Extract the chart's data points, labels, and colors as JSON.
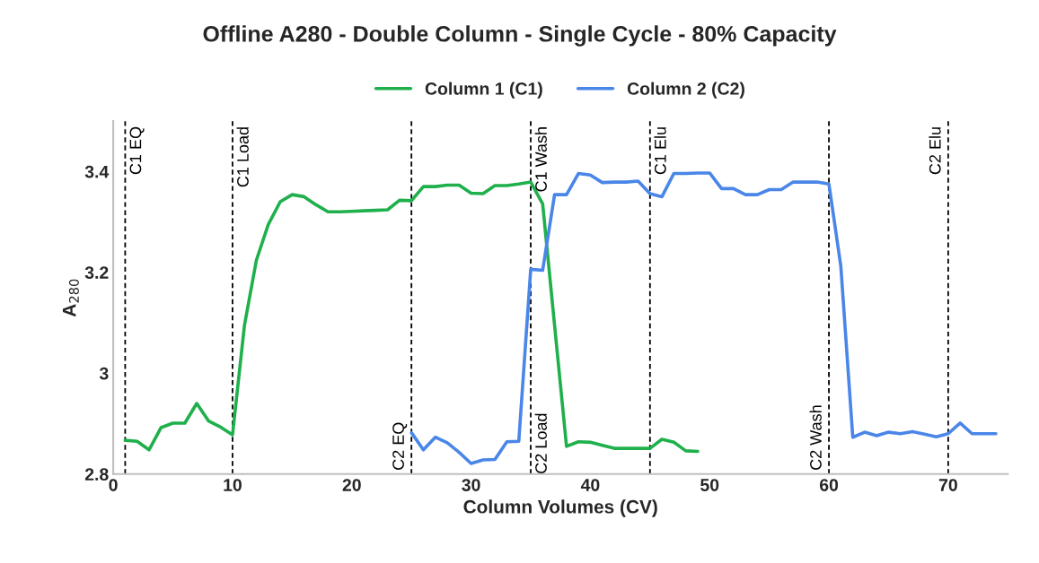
{
  "chart_data": {
    "type": "line",
    "title": "Offline A280 - Double Column - Single Cycle - 80% Capacity",
    "xlabel": "Column Volumes (CV)",
    "ylabel": "A$_{280}$",
    "xlim": [
      0,
      75
    ],
    "xticks": [
      0,
      10,
      20,
      30,
      40,
      50,
      60,
      70
    ],
    "ylim": [
      2.8,
      3.5
    ],
    "yticks": [
      2.8,
      3,
      3.2,
      3.4
    ],
    "legend": "top",
    "grid": false,
    "marker": "none",
    "line_style": "solid",
    "annotations": [
      {
        "text": "C2 Load",
        "x": 35,
        "y": 2.8
      }
    ],
    "series": [
      {
        "name": "Column 1 (C1)",
        "color": "#1fb04c",
        "x": [
          1,
          2,
          3,
          4,
          5,
          6,
          7,
          8,
          9,
          10,
          11,
          12,
          13,
          14,
          15,
          16,
          17,
          18,
          19,
          20,
          21,
          22,
          23,
          24,
          25,
          26,
          27,
          28,
          29,
          30,
          31,
          32,
          33,
          34,
          35,
          36,
          37,
          38,
          39,
          40,
          41,
          42,
          43,
          44,
          45,
          46,
          47,
          48,
          49
        ],
        "values": [
          2.867,
          2.865,
          2.848,
          2.892,
          2.901,
          2.901,
          2.94,
          2.905,
          2.893,
          2.878,
          3.095,
          3.224,
          3.295,
          3.34,
          3.354,
          3.35,
          3.334,
          3.32,
          3.32,
          3.321,
          3.322,
          3.323,
          3.324,
          3.343,
          3.342,
          3.37,
          3.37,
          3.373,
          3.373,
          3.357,
          3.356,
          3.372,
          3.372,
          3.375,
          3.379,
          3.336,
          3.095,
          2.855,
          2.864,
          2.863,
          2.857,
          2.851,
          2.851,
          2.851,
          2.851,
          2.869,
          2.863,
          2.846,
          2.845
        ]
      },
      {
        "name": "Column 2 (C2)",
        "color": "#4a86e8",
        "x": [
          25,
          26,
          27,
          28,
          29,
          30,
          31,
          32,
          33,
          34,
          35,
          36,
          37,
          38,
          39,
          40,
          41,
          42,
          43,
          44,
          45,
          46,
          47,
          48,
          49,
          50,
          51,
          52,
          53,
          54,
          55,
          56,
          57,
          58,
          59,
          60,
          61,
          62,
          63,
          64,
          65,
          66,
          67,
          68,
          69,
          70,
          71,
          72,
          73,
          74
        ],
        "values": [
          2.882,
          2.848,
          2.873,
          2.862,
          2.843,
          2.821,
          2.828,
          2.829,
          2.864,
          2.865,
          3.206,
          3.204,
          3.354,
          3.354,
          3.396,
          3.393,
          3.378,
          3.379,
          3.379,
          3.381,
          3.356,
          3.35,
          3.396,
          3.396,
          3.397,
          3.397,
          3.366,
          3.366,
          3.354,
          3.354,
          3.364,
          3.364,
          3.379,
          3.379,
          3.379,
          3.375,
          3.212,
          2.873,
          2.883,
          2.876,
          2.883,
          2.88,
          2.884,
          2.879,
          2.874,
          2.88,
          2.901,
          2.88,
          2.88,
          2.88
        ]
      }
    ],
    "ref_lines": [
      {
        "axis": "x",
        "value": 1,
        "label": "C1 EQ",
        "color": "#000000",
        "line_style": "dashed"
      },
      {
        "axis": "x",
        "value": 10,
        "label": "C1 Load",
        "color": "#000000",
        "line_style": "dashed"
      },
      {
        "axis": "x",
        "value": 25,
        "label": "C2 EQ",
        "color": "#000000",
        "line_style": "dashed"
      },
      {
        "axis": "x",
        "value": 35,
        "label": "C1 Wash",
        "color": "#000000",
        "line_style": "dashed"
      },
      {
        "axis": "x",
        "value": 45,
        "label": "C1 Elu",
        "color": "#000000",
        "line_style": "dashed"
      },
      {
        "axis": "x",
        "value": 60,
        "label": "C2 Wash",
        "color": "#000000",
        "line_style": "dashed"
      },
      {
        "axis": "x",
        "value": 70,
        "label": "C2 Elu",
        "color": "#000000",
        "line_style": "dashed"
      }
    ]
  }
}
